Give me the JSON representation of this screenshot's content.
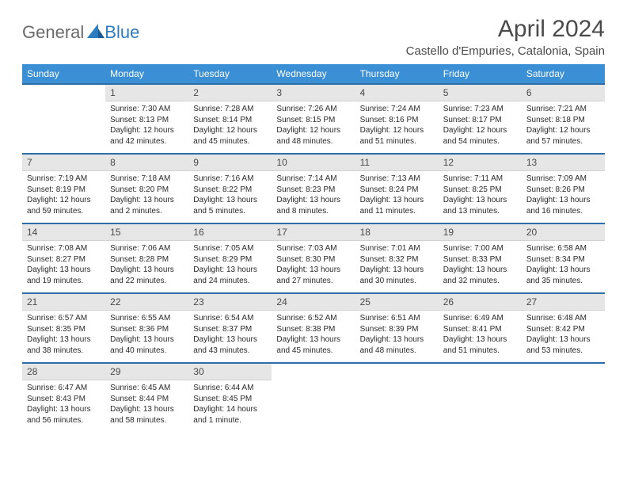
{
  "logo": {
    "general": "General",
    "blue": "Blue"
  },
  "title": "April 2024",
  "location": "Castello d'Empuries, Catalonia, Spain",
  "colors": {
    "header_bg": "#3b8fd4",
    "header_text": "#ffffff",
    "daynum_bg": "#e6e6e6",
    "daynum_border_top": "#2d6ea8",
    "body_text": "#2a2a2a",
    "logo_gray": "#6a6a6a",
    "logo_blue": "#2d7cc0"
  },
  "weekdays": [
    "Sunday",
    "Monday",
    "Tuesday",
    "Wednesday",
    "Thursday",
    "Friday",
    "Saturday"
  ],
  "weeks": [
    [
      {
        "n": "",
        "sr": "",
        "ss": "",
        "dl": ""
      },
      {
        "n": "1",
        "sr": "Sunrise: 7:30 AM",
        "ss": "Sunset: 8:13 PM",
        "dl": "Daylight: 12 hours and 42 minutes."
      },
      {
        "n": "2",
        "sr": "Sunrise: 7:28 AM",
        "ss": "Sunset: 8:14 PM",
        "dl": "Daylight: 12 hours and 45 minutes."
      },
      {
        "n": "3",
        "sr": "Sunrise: 7:26 AM",
        "ss": "Sunset: 8:15 PM",
        "dl": "Daylight: 12 hours and 48 minutes."
      },
      {
        "n": "4",
        "sr": "Sunrise: 7:24 AM",
        "ss": "Sunset: 8:16 PM",
        "dl": "Daylight: 12 hours and 51 minutes."
      },
      {
        "n": "5",
        "sr": "Sunrise: 7:23 AM",
        "ss": "Sunset: 8:17 PM",
        "dl": "Daylight: 12 hours and 54 minutes."
      },
      {
        "n": "6",
        "sr": "Sunrise: 7:21 AM",
        "ss": "Sunset: 8:18 PM",
        "dl": "Daylight: 12 hours and 57 minutes."
      }
    ],
    [
      {
        "n": "7",
        "sr": "Sunrise: 7:19 AM",
        "ss": "Sunset: 8:19 PM",
        "dl": "Daylight: 12 hours and 59 minutes."
      },
      {
        "n": "8",
        "sr": "Sunrise: 7:18 AM",
        "ss": "Sunset: 8:20 PM",
        "dl": "Daylight: 13 hours and 2 minutes."
      },
      {
        "n": "9",
        "sr": "Sunrise: 7:16 AM",
        "ss": "Sunset: 8:22 PM",
        "dl": "Daylight: 13 hours and 5 minutes."
      },
      {
        "n": "10",
        "sr": "Sunrise: 7:14 AM",
        "ss": "Sunset: 8:23 PM",
        "dl": "Daylight: 13 hours and 8 minutes."
      },
      {
        "n": "11",
        "sr": "Sunrise: 7:13 AM",
        "ss": "Sunset: 8:24 PM",
        "dl": "Daylight: 13 hours and 11 minutes."
      },
      {
        "n": "12",
        "sr": "Sunrise: 7:11 AM",
        "ss": "Sunset: 8:25 PM",
        "dl": "Daylight: 13 hours and 13 minutes."
      },
      {
        "n": "13",
        "sr": "Sunrise: 7:09 AM",
        "ss": "Sunset: 8:26 PM",
        "dl": "Daylight: 13 hours and 16 minutes."
      }
    ],
    [
      {
        "n": "14",
        "sr": "Sunrise: 7:08 AM",
        "ss": "Sunset: 8:27 PM",
        "dl": "Daylight: 13 hours and 19 minutes."
      },
      {
        "n": "15",
        "sr": "Sunrise: 7:06 AM",
        "ss": "Sunset: 8:28 PM",
        "dl": "Daylight: 13 hours and 22 minutes."
      },
      {
        "n": "16",
        "sr": "Sunrise: 7:05 AM",
        "ss": "Sunset: 8:29 PM",
        "dl": "Daylight: 13 hours and 24 minutes."
      },
      {
        "n": "17",
        "sr": "Sunrise: 7:03 AM",
        "ss": "Sunset: 8:30 PM",
        "dl": "Daylight: 13 hours and 27 minutes."
      },
      {
        "n": "18",
        "sr": "Sunrise: 7:01 AM",
        "ss": "Sunset: 8:32 PM",
        "dl": "Daylight: 13 hours and 30 minutes."
      },
      {
        "n": "19",
        "sr": "Sunrise: 7:00 AM",
        "ss": "Sunset: 8:33 PM",
        "dl": "Daylight: 13 hours and 32 minutes."
      },
      {
        "n": "20",
        "sr": "Sunrise: 6:58 AM",
        "ss": "Sunset: 8:34 PM",
        "dl": "Daylight: 13 hours and 35 minutes."
      }
    ],
    [
      {
        "n": "21",
        "sr": "Sunrise: 6:57 AM",
        "ss": "Sunset: 8:35 PM",
        "dl": "Daylight: 13 hours and 38 minutes."
      },
      {
        "n": "22",
        "sr": "Sunrise: 6:55 AM",
        "ss": "Sunset: 8:36 PM",
        "dl": "Daylight: 13 hours and 40 minutes."
      },
      {
        "n": "23",
        "sr": "Sunrise: 6:54 AM",
        "ss": "Sunset: 8:37 PM",
        "dl": "Daylight: 13 hours and 43 minutes."
      },
      {
        "n": "24",
        "sr": "Sunrise: 6:52 AM",
        "ss": "Sunset: 8:38 PM",
        "dl": "Daylight: 13 hours and 45 minutes."
      },
      {
        "n": "25",
        "sr": "Sunrise: 6:51 AM",
        "ss": "Sunset: 8:39 PM",
        "dl": "Daylight: 13 hours and 48 minutes."
      },
      {
        "n": "26",
        "sr": "Sunrise: 6:49 AM",
        "ss": "Sunset: 8:41 PM",
        "dl": "Daylight: 13 hours and 51 minutes."
      },
      {
        "n": "27",
        "sr": "Sunrise: 6:48 AM",
        "ss": "Sunset: 8:42 PM",
        "dl": "Daylight: 13 hours and 53 minutes."
      }
    ],
    [
      {
        "n": "28",
        "sr": "Sunrise: 6:47 AM",
        "ss": "Sunset: 8:43 PM",
        "dl": "Daylight: 13 hours and 56 minutes."
      },
      {
        "n": "29",
        "sr": "Sunrise: 6:45 AM",
        "ss": "Sunset: 8:44 PM",
        "dl": "Daylight: 13 hours and 58 minutes."
      },
      {
        "n": "30",
        "sr": "Sunrise: 6:44 AM",
        "ss": "Sunset: 8:45 PM",
        "dl": "Daylight: 14 hours and 1 minute."
      },
      {
        "n": "",
        "sr": "",
        "ss": "",
        "dl": ""
      },
      {
        "n": "",
        "sr": "",
        "ss": "",
        "dl": ""
      },
      {
        "n": "",
        "sr": "",
        "ss": "",
        "dl": ""
      },
      {
        "n": "",
        "sr": "",
        "ss": "",
        "dl": ""
      }
    ]
  ]
}
